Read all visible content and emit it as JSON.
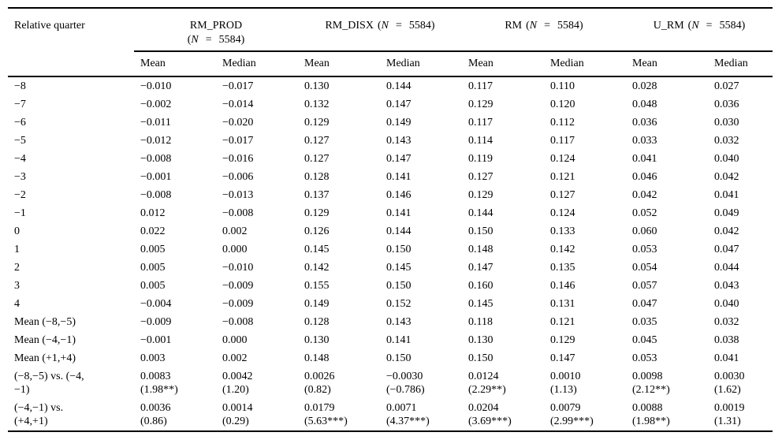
{
  "table": {
    "col1_header": "Relative quarter",
    "subheaders": [
      "Mean",
      "Median"
    ],
    "groups": [
      {
        "name": "RM_PROD",
        "open": "(",
        "n": "N",
        "eq": "=",
        "count": "5584",
        "close": ")"
      },
      {
        "name": "RM_DISX",
        "open": "(",
        "n": "N",
        "eq": "=",
        "count": "5584",
        "close": ")"
      },
      {
        "name": "RM",
        "open": "(",
        "n": "N",
        "eq": "=",
        "count": "5584",
        "close": ")"
      },
      {
        "name": "U_RM",
        "open": "(",
        "n": "N",
        "eq": "=",
        "count": "5584",
        "close": ")"
      }
    ],
    "rows": [
      {
        "label": "−8",
        "cells": [
          "−0.010",
          "−0.017",
          "0.130",
          "0.144",
          "0.117",
          "0.110",
          "0.028",
          "0.027"
        ]
      },
      {
        "label": "−7",
        "cells": [
          "−0.002",
          "−0.014",
          "0.132",
          "0.147",
          "0.129",
          "0.120",
          "0.048",
          "0.036"
        ]
      },
      {
        "label": "−6",
        "cells": [
          "−0.011",
          "−0.020",
          "0.129",
          "0.149",
          "0.117",
          "0.112",
          "0.036",
          "0.030"
        ]
      },
      {
        "label": "−5",
        "cells": [
          "−0.012",
          "−0.017",
          "0.127",
          "0.143",
          "0.114",
          "0.117",
          "0.033",
          "0.032"
        ]
      },
      {
        "label": "−4",
        "cells": [
          "−0.008",
          "−0.016",
          "0.127",
          "0.147",
          "0.119",
          "0.124",
          "0.041",
          "0.040"
        ]
      },
      {
        "label": "−3",
        "cells": [
          "−0.001",
          "−0.006",
          "0.128",
          "0.141",
          "0.127",
          "0.121",
          "0.046",
          "0.042"
        ]
      },
      {
        "label": "−2",
        "cells": [
          "−0.008",
          "−0.013",
          "0.137",
          "0.146",
          "0.129",
          "0.127",
          "0.042",
          "0.041"
        ]
      },
      {
        "label": "−1",
        "cells": [
          "0.012",
          "−0.008",
          "0.129",
          "0.141",
          "0.144",
          "0.124",
          "0.052",
          "0.049"
        ]
      },
      {
        "label": "0",
        "cells": [
          "0.022",
          "0.002",
          "0.126",
          "0.144",
          "0.150",
          "0.133",
          "0.060",
          "0.042"
        ]
      },
      {
        "label": "1",
        "cells": [
          "0.005",
          "0.000",
          "0.145",
          "0.150",
          "0.148",
          "0.142",
          "0.053",
          "0.047"
        ]
      },
      {
        "label": "2",
        "cells": [
          "0.005",
          "−0.010",
          "0.142",
          "0.145",
          "0.147",
          "0.135",
          "0.054",
          "0.044"
        ]
      },
      {
        "label": "3",
        "cells": [
          "0.005",
          "−0.009",
          "0.155",
          "0.150",
          "0.160",
          "0.146",
          "0.057",
          "0.043"
        ]
      },
      {
        "label": "4",
        "cells": [
          "−0.004",
          "−0.009",
          "0.149",
          "0.152",
          "0.145",
          "0.131",
          "0.047",
          "0.040"
        ]
      },
      {
        "label": "Mean (−8,−5)",
        "cells": [
          "−0.009",
          "−0.008",
          "0.128",
          "0.143",
          "0.118",
          "0.121",
          "0.035",
          "0.032"
        ]
      },
      {
        "label": "Mean (−4,−1)",
        "cells": [
          "−0.001",
          "0.000",
          "0.130",
          "0.141",
          "0.130",
          "0.129",
          "0.045",
          "0.038"
        ]
      },
      {
        "label": "Mean (+1,+4)",
        "cells": [
          "0.003",
          "0.002",
          "0.148",
          "0.150",
          "0.150",
          "0.147",
          "0.053",
          "0.041"
        ]
      },
      {
        "label": [
          "(−8,−5) vs. (−4,",
          "−1)"
        ],
        "cells": [
          [
            "0.0083",
            "(1.98**)"
          ],
          [
            "0.0042",
            "(1.20)"
          ],
          [
            "0.0026",
            "(0.82)"
          ],
          [
            "−0.0030",
            "(−0.786)"
          ],
          [
            "0.0124",
            "(2.29**)"
          ],
          [
            "0.0010",
            "(1.13)"
          ],
          [
            "0.0098",
            "(2.12**)"
          ],
          [
            "0.0030",
            "(1.62)"
          ]
        ]
      },
      {
        "label": [
          "(−4,−1) vs.",
          "(+4,+1)"
        ],
        "cells": [
          [
            "0.0036",
            "(0.86)"
          ],
          [
            "0.0014",
            "(0.29)"
          ],
          [
            "0.0179",
            "(5.63***)"
          ],
          [
            "0.0071",
            "(4.37***)"
          ],
          [
            "0.0204",
            "(3.69***)"
          ],
          [
            "0.0079",
            "(2.99***)"
          ],
          [
            "0.0088",
            "(1.98**)"
          ],
          [
            "0.0019",
            "(1.31)"
          ]
        ]
      }
    ]
  }
}
